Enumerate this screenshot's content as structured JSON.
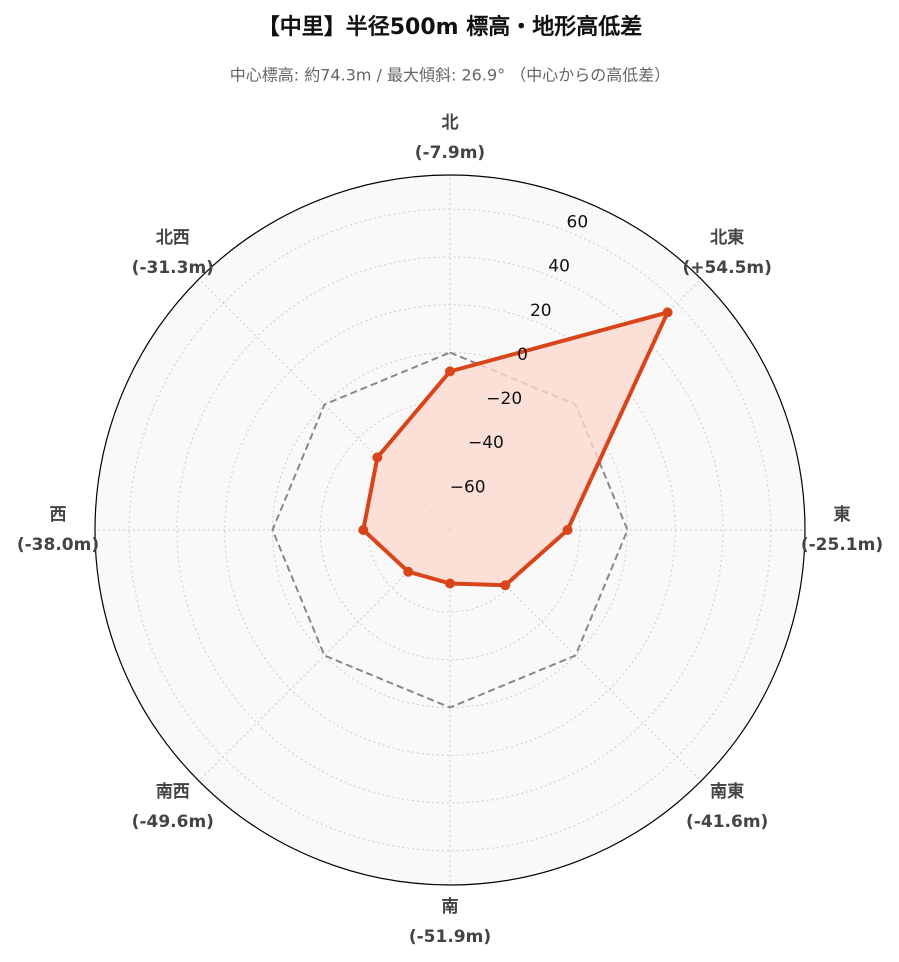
{
  "chart_data": {
    "type": "radar",
    "title": "【中里】半径500m 標高・地形高低差",
    "subtitle": "中心標高: 約74.3m / 最大傾斜: 26.9° （中心からの高低差）",
    "categories": [
      "北",
      "北東",
      "東",
      "南東",
      "南",
      "南西",
      "西",
      "北西"
    ],
    "series": [
      {
        "color": "#d9451b",
        "fill": "#fcd9cf",
        "values": [
          -7.9,
          54.5,
          -25.1,
          -41.6,
          -51.9,
          -49.6,
          -38.0,
          -31.3
        ],
        "value_labels": [
          "(-7.9m)",
          "(+54.5m)",
          "(-25.1m)",
          "(-41.6m)",
          "(-51.9m)",
          "(-49.6m)",
          "(-38.0m)",
          "(-31.3m)"
        ]
      }
    ],
    "reference_line": {
      "value": 0,
      "color": "#888888"
    },
    "ylim": [
      -74.3,
      74.3
    ],
    "yticks": [
      {
        "value": -60,
        "label": "−60"
      },
      {
        "value": -40,
        "label": "−40"
      },
      {
        "value": -20,
        "label": "−20"
      },
      0,
      20,
      40,
      60
    ],
    "grid": true
  }
}
